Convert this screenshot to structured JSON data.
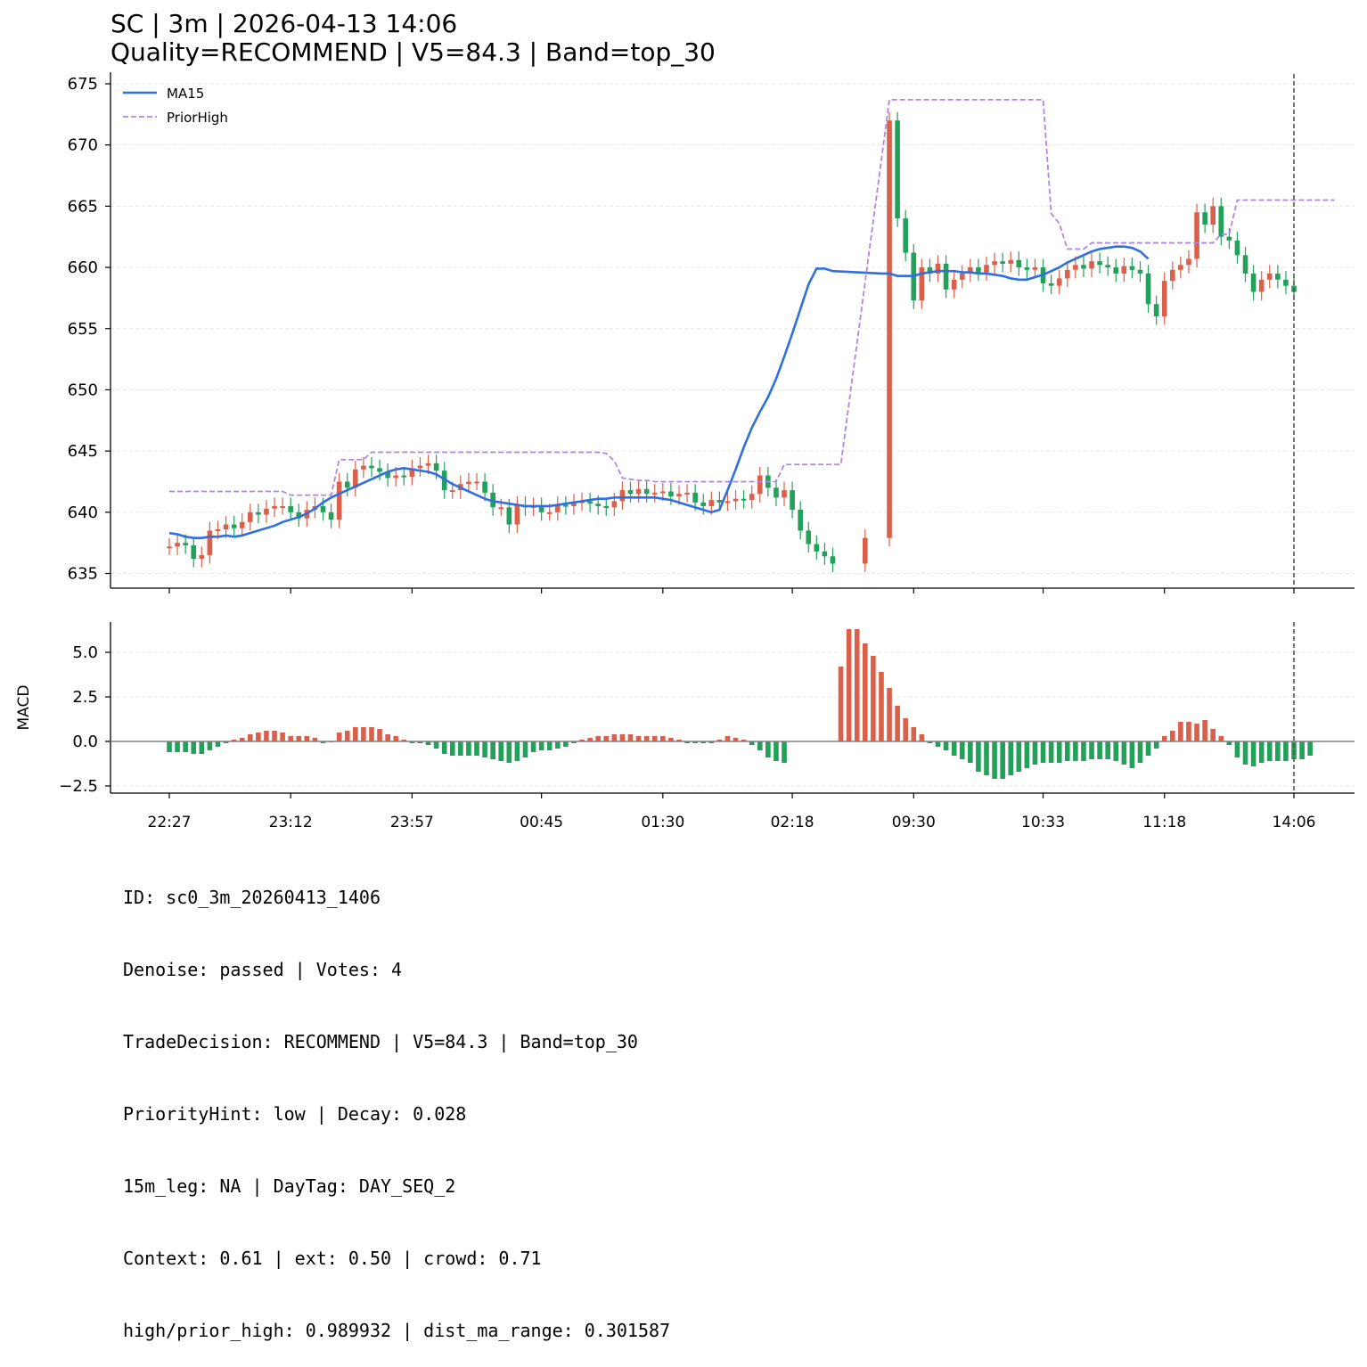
{
  "title": {
    "line1": "SC | 3m | 2026-04-13 14:06",
    "line2": "Quality=RECOMMEND | V5=84.3 | Band=top_30"
  },
  "info_lines": [
    "ID: sc0_3m_20260413_1406",
    "Denoise: passed | Votes: 4",
    "TradeDecision: RECOMMEND | V5=84.3 | Band=top_30",
    "PriorityHint: low | Decay: 0.028",
    "15m_leg: NA | DayTag: DAY_SEQ_2",
    "Context: 0.61 | ext: 0.50 | crowd: 0.71",
    "high/prior_high: 0.989932 | dist_ma_range: 0.301587"
  ],
  "colors": {
    "up": "#d9604a",
    "down": "#23a05a",
    "ma": "#2f6fe0",
    "prior_high": "#b084e8",
    "grid": "#e6e6e6",
    "vline": "#555555"
  },
  "chart_data": {
    "type": "candlestick",
    "x_ticks": [
      {
        "label": "22:27",
        "index": 0
      },
      {
        "label": "23:12",
        "index": 15
      },
      {
        "label": "23:57",
        "index": 30
      },
      {
        "label": "00:45",
        "index": 46
      },
      {
        "label": "01:30",
        "index": 61
      },
      {
        "label": "02:18",
        "index": 77
      },
      {
        "label": "09:30",
        "index": 92
      },
      {
        "label": "10:33",
        "index": 108
      },
      {
        "label": "11:18",
        "index": 123
      },
      {
        "label": "14:06",
        "index": 139
      }
    ],
    "n_bars": 140,
    "price": {
      "ylim": [
        633.8,
        675.8
      ],
      "yticks": [
        635,
        640,
        645,
        650,
        655,
        660,
        665,
        670,
        675
      ],
      "legend": [
        "MA15",
        "PriorHigh"
      ],
      "close": [
        637.2,
        637.5,
        637.3,
        636.2,
        636.5,
        638.5,
        638.6,
        639.0,
        638.7,
        639.2,
        640.0,
        639.8,
        640.3,
        640.5,
        640.5,
        640.0,
        639.5,
        640.2,
        640.5,
        640.0,
        639.4,
        642.5,
        642.0,
        643.5,
        643.8,
        643.6,
        643.3,
        642.8,
        643.0,
        642.9,
        643.6,
        643.8,
        644.0,
        643.4,
        641.8,
        641.8,
        642.3,
        642.5,
        642.5,
        641.6,
        640.4,
        640.4,
        639.0,
        640.6,
        640.4,
        640.5,
        640.0,
        640.0,
        640.6,
        640.5,
        640.8,
        640.9,
        640.7,
        640.5,
        640.4,
        640.9,
        641.8,
        641.5,
        641.9,
        641.5,
        641.6,
        641.7,
        641.3,
        641.5,
        641.6,
        640.8,
        640.5,
        641.0,
        640.8,
        640.9,
        641.1,
        641.0,
        641.5,
        643.0,
        642.0,
        641.2,
        641.8,
        640.2,
        638.5,
        637.4,
        636.8,
        636.4,
        635.8,
        null,
        null,
        null,
        637.9,
        null,
        null,
        672.0,
        664.0,
        661.2,
        657.3,
        660.0,
        659.5,
        660.3,
        658.2,
        659.0,
        659.5,
        660.0,
        659.6,
        660.2,
        660.5,
        660.3,
        660.6,
        660.0,
        659.8,
        660.0,
        658.7,
        658.5,
        659.1,
        659.8,
        660.2,
        659.9,
        660.5,
        660.2,
        660.0,
        659.5,
        660.1,
        659.8,
        659.5,
        657.0,
        656.0,
        658.9,
        659.8,
        660.2,
        660.7,
        664.5,
        663.5,
        665.0,
        662.5,
        662.2,
        661.0,
        659.5,
        658.0,
        659.0,
        659.5,
        659.0,
        658.5,
        658.0
      ],
      "ma15": [
        638.3,
        638.2,
        638.0,
        637.9,
        637.9,
        638.0,
        638.0,
        638.1,
        638.0,
        638.1,
        638.3,
        638.5,
        638.7,
        638.9,
        639.2,
        639.4,
        639.6,
        639.9,
        640.3,
        640.8,
        641.2,
        641.5,
        641.8,
        642.1,
        642.4,
        642.7,
        643.0,
        643.3,
        643.5,
        643.6,
        643.5,
        643.4,
        643.3,
        643.1,
        642.7,
        642.3,
        642.0,
        641.7,
        641.4,
        641.1,
        640.9,
        640.8,
        640.7,
        640.6,
        640.5,
        640.5,
        640.5,
        640.5,
        640.6,
        640.7,
        640.8,
        640.9,
        641.0,
        641.1,
        641.1,
        641.2,
        641.2,
        641.2,
        641.2,
        641.2,
        641.2,
        641.1,
        641.0,
        640.8,
        640.6,
        640.4,
        640.2,
        640.0,
        640.2,
        641.8,
        643.5,
        645.3,
        646.9,
        648.2,
        649.4,
        650.9,
        652.7,
        654.6,
        656.6,
        658.6,
        659.9,
        659.9,
        659.7,
        659.5,
        659.5,
        659.3,
        659.3,
        659.3,
        659.5,
        659.6,
        659.7,
        659.7,
        659.7,
        659.6,
        659.6,
        659.5,
        659.5,
        659.4,
        659.3,
        659.1,
        659.0,
        659.0,
        659.2,
        659.4,
        659.7,
        660.0,
        660.4,
        660.7,
        661.0,
        661.3,
        661.5,
        661.6,
        661.7,
        661.7,
        661.6,
        661.3,
        660.7
      ],
      "ma_start": 0,
      "ma_gap": [
        83,
        88
      ],
      "prior_high": [
        641.7,
        641.7,
        641.7,
        641.7,
        641.7,
        641.7,
        641.7,
        641.7,
        641.7,
        641.7,
        641.7,
        641.7,
        641.7,
        641.7,
        641.7,
        641.4,
        641.4,
        641.4,
        641.4,
        641.4,
        641.4,
        644.3,
        644.3,
        644.3,
        644.3,
        644.9,
        644.9,
        644.9,
        644.9,
        644.9,
        644.9,
        644.9,
        644.9,
        644.9,
        644.9,
        644.9,
        644.9,
        644.9,
        644.9,
        644.9,
        644.9,
        644.9,
        644.9,
        644.9,
        644.9,
        644.9,
        644.9,
        644.9,
        644.9,
        644.9,
        644.9,
        644.9,
        644.9,
        644.9,
        644.8,
        644.2,
        642.8,
        642.7,
        642.6,
        642.6,
        642.5,
        642.5,
        642.5,
        642.5,
        642.5,
        642.5,
        642.5,
        642.5,
        642.5,
        642.5,
        642.5,
        642.5,
        642.5,
        642.5,
        642.5,
        642.5,
        643.9,
        643.9,
        643.9,
        643.9,
        643.9,
        643.9,
        643.9,
        643.9,
        null,
        null,
        null,
        null,
        null,
        673.7,
        673.7,
        673.7,
        673.7,
        673.7,
        673.7,
        673.7,
        673.7,
        673.7,
        673.7,
        673.7,
        673.7,
        673.7,
        673.7,
        673.7,
        673.7,
        673.7,
        673.7,
        673.7,
        673.7,
        664.4,
        663.6,
        661.5,
        661.5,
        661.5,
        662.0,
        662.0,
        662.0,
        662.0,
        662.0,
        662.0,
        662.0,
        662.0,
        662.0,
        662.0,
        662.0,
        662.0,
        662.0,
        662.0,
        662.0,
        662.0,
        662.7,
        662.7,
        665.5,
        665.5,
        665.5,
        665.5,
        665.5,
        665.5,
        665.5,
        665.5,
        665.5,
        665.5,
        665.5,
        665.5,
        665.5
      ]
    },
    "macd": {
      "ylabel": "MACD",
      "ylim": [
        -2.9,
        6.7
      ],
      "yticks": [
        -2.5,
        0.0,
        2.5,
        5.0
      ],
      "ytick_labels": [
        "−2.5",
        "0.0",
        "2.5",
        "5.0"
      ],
      "hist": [
        -0.6,
        -0.6,
        -0.6,
        -0.7,
        -0.7,
        -0.5,
        -0.3,
        -0.1,
        0.1,
        0.2,
        0.4,
        0.5,
        0.6,
        0.6,
        0.5,
        0.3,
        0.3,
        0.3,
        0.2,
        -0.1,
        0.0,
        0.5,
        0.6,
        0.8,
        0.8,
        0.8,
        0.7,
        0.4,
        0.3,
        0.1,
        -0.1,
        -0.1,
        -0.2,
        -0.4,
        -0.7,
        -0.8,
        -0.8,
        -0.8,
        -0.8,
        -0.9,
        -1.0,
        -1.1,
        -1.2,
        -1.1,
        -0.9,
        -0.6,
        -0.5,
        -0.5,
        -0.4,
        -0.3,
        -0.1,
        0.1,
        0.2,
        0.3,
        0.3,
        0.4,
        0.4,
        0.4,
        0.3,
        0.3,
        0.3,
        0.3,
        0.2,
        0.1,
        -0.1,
        -0.1,
        -0.1,
        -0.1,
        0.1,
        0.3,
        0.2,
        0.1,
        -0.2,
        -0.5,
        -0.9,
        -1.1,
        -1.2,
        null,
        null,
        null,
        null,
        null,
        null,
        4.2,
        6.3,
        6.3,
        5.5,
        4.8,
        3.9,
        3.0,
        2.0,
        1.3,
        0.8,
        0.4,
        -0.1,
        -0.3,
        -0.5,
        -0.8,
        -1.0,
        -1.2,
        -1.7,
        -1.9,
        -2.1,
        -2.1,
        -1.9,
        -1.7,
        -1.5,
        -1.3,
        -1.2,
        -1.2,
        -1.2,
        -1.1,
        -1.1,
        -1.1,
        -1.0,
        -1.0,
        -1.0,
        -1.1,
        -1.3,
        -1.5,
        -1.2,
        -0.8,
        -0.4,
        0.3,
        0.6,
        1.1,
        1.1,
        1.0,
        1.2,
        0.7,
        0.3,
        -0.2,
        -0.9,
        -1.3,
        -1.4,
        -1.2,
        -1.1,
        -1.1,
        -1.1,
        -1.0,
        -1.0,
        -0.8
      ]
    },
    "vline_index": 139
  }
}
